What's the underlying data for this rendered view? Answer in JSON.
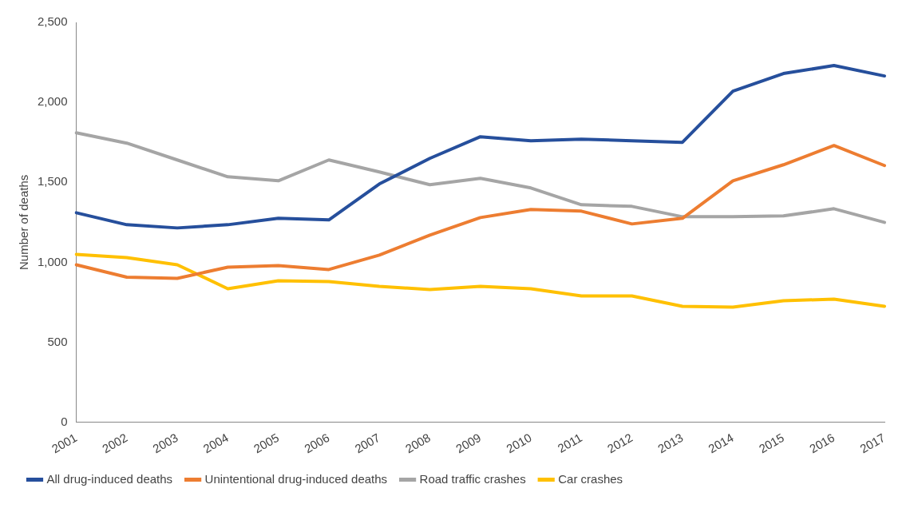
{
  "chart_data": {
    "type": "line",
    "ylabel": "Number of deaths",
    "categories": [
      "2001",
      "2002",
      "2003",
      "2004",
      "2005",
      "2006",
      "2007",
      "2008",
      "2009",
      "2010",
      "2011",
      "2012",
      "2013",
      "2014",
      "2015",
      "2016",
      "2017"
    ],
    "series": [
      {
        "name": "All drug-induced deaths",
        "color": "#264f9c",
        "values": [
          1310,
          1235,
          1215,
          1235,
          1275,
          1265,
          1490,
          1650,
          1785,
          1760,
          1770,
          1760,
          1750,
          2070,
          2180,
          2230,
          2165
        ]
      },
      {
        "name": "Unintentional drug-induced deaths",
        "color": "#ed7d31",
        "values": [
          985,
          907,
          900,
          970,
          980,
          955,
          1045,
          1170,
          1280,
          1330,
          1320,
          1240,
          1275,
          1510,
          1610,
          1730,
          1605
        ]
      },
      {
        "name": "Road traffic crashes",
        "color": "#a5a5a5",
        "values": [
          1810,
          1745,
          1640,
          1535,
          1510,
          1640,
          1565,
          1485,
          1525,
          1465,
          1360,
          1350,
          1285,
          1285,
          1290,
          1335,
          1250
        ]
      },
      {
        "name": "Car crashes",
        "color": "#ffc000",
        "values": [
          1050,
          1030,
          985,
          835,
          885,
          880,
          850,
          830,
          850,
          835,
          790,
          790,
          725,
          720,
          760,
          770,
          725
        ]
      }
    ],
    "ylim": [
      0,
      2500
    ],
    "yticks": [
      {
        "value": 0,
        "label": "0"
      },
      {
        "value": 500,
        "label": "500"
      },
      {
        "value": 1000,
        "label": "1,000"
      },
      {
        "value": 1500,
        "label": "1,500"
      },
      {
        "value": 2000,
        "label": "2,000"
      },
      {
        "value": 2500,
        "label": "2,500"
      }
    ],
    "grid": false,
    "legend": "bottom",
    "marker": "none",
    "line_style": "solid"
  }
}
